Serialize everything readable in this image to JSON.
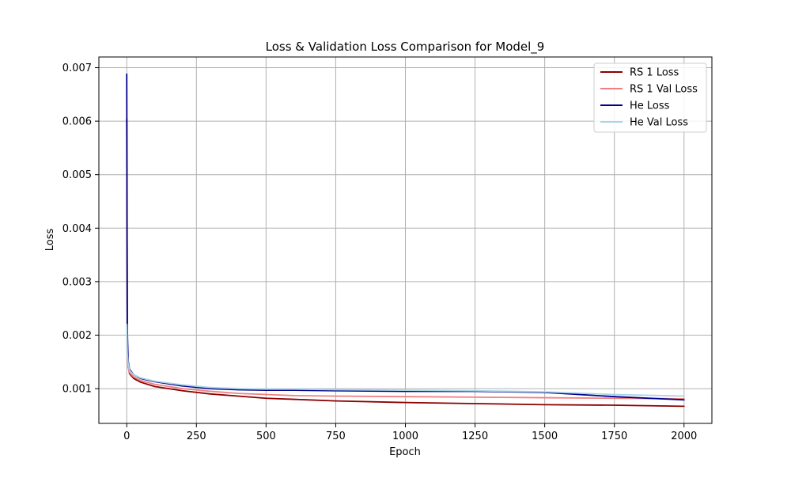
{
  "chart_data": {
    "type": "line",
    "title": "Loss & Validation Loss Comparison for Model_9",
    "xlabel": "Epoch",
    "ylabel": "Loss",
    "xlim": [
      -100,
      2100
    ],
    "ylim": [
      0.00035,
      0.0072
    ],
    "xticks": [
      0,
      250,
      500,
      750,
      1000,
      1250,
      1500,
      1750,
      2000
    ],
    "xtick_labels": [
      "0",
      "250",
      "500",
      "750",
      "1000",
      "1250",
      "1500",
      "1750",
      "2000"
    ],
    "yticks": [
      0.001,
      0.002,
      0.003,
      0.004,
      0.005,
      0.006,
      0.007
    ],
    "ytick_labels": [
      "0.001",
      "0.002",
      "0.003",
      "0.004",
      "0.005",
      "0.006",
      "0.007"
    ],
    "grid": true,
    "legend_position": "top-right",
    "series": [
      {
        "name": "RS 1 Loss",
        "color": "#8b0000",
        "x": [
          0,
          2,
          5,
          10,
          25,
          50,
          100,
          200,
          300,
          400,
          500,
          600,
          750,
          1000,
          1250,
          1500,
          1750,
          2000
        ],
        "y": [
          0.00605,
          0.0019,
          0.00142,
          0.00128,
          0.00119,
          0.00112,
          0.00104,
          0.00096,
          0.0009,
          0.00086,
          0.00082,
          0.0008,
          0.00077,
          0.00074,
          0.00072,
          0.0007,
          0.00069,
          0.00067
        ]
      },
      {
        "name": "RS 1 Val Loss",
        "color": "#f08080",
        "x": [
          0,
          2,
          5,
          10,
          25,
          50,
          100,
          200,
          300,
          400,
          500,
          600,
          750,
          1000,
          1250,
          1500,
          1750,
          2000
        ],
        "y": [
          0.0022,
          0.0016,
          0.0014,
          0.0013,
          0.00122,
          0.00115,
          0.00108,
          0.001,
          0.00095,
          0.00091,
          0.00089,
          0.00087,
          0.00086,
          0.00085,
          0.00084,
          0.00083,
          0.00082,
          0.00081
        ]
      },
      {
        "name": "He Loss",
        "color": "#00008b",
        "x": [
          0,
          2,
          5,
          10,
          25,
          50,
          100,
          200,
          300,
          400,
          500,
          600,
          750,
          1000,
          1250,
          1500,
          1750,
          2000
        ],
        "y": [
          0.00688,
          0.0021,
          0.00152,
          0.00136,
          0.00126,
          0.00119,
          0.00113,
          0.00105,
          0.001,
          0.00098,
          0.00097,
          0.00097,
          0.00096,
          0.00095,
          0.00095,
          0.00093,
          0.00085,
          0.00079
        ]
      },
      {
        "name": "He Val Loss",
        "color": "#a8d4e8",
        "x": [
          0,
          2,
          5,
          10,
          25,
          50,
          100,
          200,
          300,
          400,
          500,
          600,
          750,
          1000,
          1250,
          1500,
          1750,
          2000
        ],
        "y": [
          0.0022,
          0.00165,
          0.00148,
          0.00134,
          0.00126,
          0.0012,
          0.00114,
          0.00107,
          0.00102,
          0.001,
          0.00099,
          0.00099,
          0.00098,
          0.00097,
          0.00096,
          0.00094,
          0.00089,
          0.00086
        ]
      }
    ]
  }
}
